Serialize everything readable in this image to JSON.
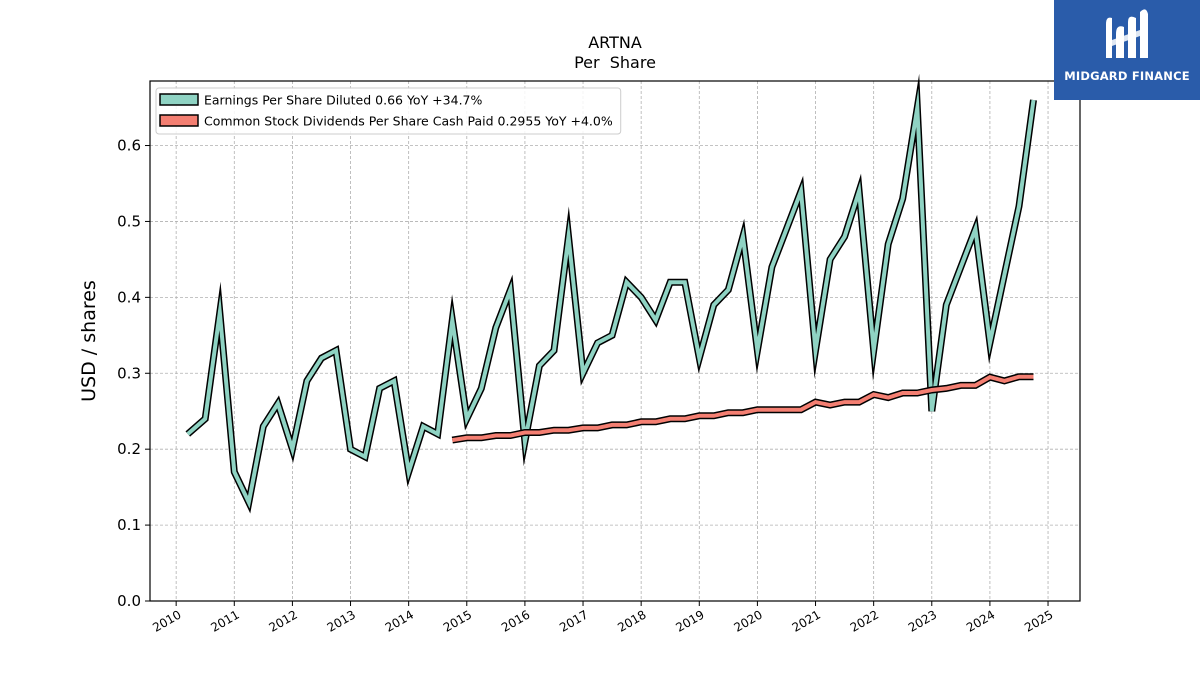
{
  "brand": {
    "name": "MIDGARD FINANCE",
    "icon": "mf-logo-icon",
    "color": "#2a5caa"
  },
  "chart_data": {
    "type": "line",
    "title": "ARTNA",
    "subtitle": "Per  Share",
    "ylabel": "USD / shares",
    "xlabel": "",
    "ylim": [
      0,
      0.685
    ],
    "xlim": [
      2009.55,
      2025.55
    ],
    "yticks": [
      0.0,
      0.1,
      0.2,
      0.3,
      0.4,
      0.5,
      0.6
    ],
    "ytick_labels": [
      "0.0",
      "0.1",
      "0.2",
      "0.3",
      "0.4",
      "0.5",
      "0.6"
    ],
    "xticks": [
      2010,
      2011,
      2012,
      2013,
      2014,
      2015,
      2016,
      2017,
      2018,
      2019,
      2020,
      2021,
      2022,
      2023,
      2024,
      2025
    ],
    "xtick_labels": [
      "2010",
      "2011",
      "2012",
      "2013",
      "2014",
      "2015",
      "2016",
      "2017",
      "2018",
      "2019",
      "2020",
      "2021",
      "2022",
      "2023",
      "2024",
      "2025"
    ],
    "grid": true,
    "legend_position": "top-left",
    "series": [
      {
        "name": "Earnings Per Share Diluted  0.66 YoY +34.7%",
        "color": "#8fd3c3",
        "x": [
          2010.2,
          2010.5,
          2010.75,
          2011.0,
          2011.25,
          2011.5,
          2011.75,
          2012.0,
          2012.25,
          2012.5,
          2012.75,
          2013.0,
          2013.25,
          2013.5,
          2013.75,
          2014.0,
          2014.25,
          2014.5,
          2014.75,
          2015.0,
          2015.25,
          2015.5,
          2015.75,
          2016.0,
          2016.25,
          2016.5,
          2016.75,
          2017.0,
          2017.25,
          2017.5,
          2017.75,
          2018.0,
          2018.25,
          2018.5,
          2018.75,
          2019.0,
          2019.25,
          2019.5,
          2019.75,
          2020.0,
          2020.25,
          2020.5,
          2020.75,
          2021.0,
          2021.25,
          2021.5,
          2021.75,
          2022.0,
          2022.25,
          2022.5,
          2022.75,
          2023.0,
          2023.25,
          2023.5,
          2023.75,
          2024.0,
          2024.25,
          2024.5,
          2024.75
        ],
        "y": [
          0.22,
          0.24,
          0.38,
          0.17,
          0.13,
          0.23,
          0.26,
          0.2,
          0.29,
          0.32,
          0.33,
          0.2,
          0.19,
          0.28,
          0.29,
          0.17,
          0.23,
          0.22,
          0.37,
          0.24,
          0.28,
          0.36,
          0.41,
          0.21,
          0.31,
          0.33,
          0.48,
          0.3,
          0.34,
          0.35,
          0.42,
          0.4,
          0.37,
          0.42,
          0.42,
          0.32,
          0.39,
          0.41,
          0.48,
          0.33,
          0.44,
          0.49,
          0.54,
          0.33,
          0.45,
          0.48,
          0.54,
          0.33,
          0.47,
          0.53,
          0.65,
          0.25,
          0.39,
          0.44,
          0.49,
          0.34,
          0.43,
          0.52,
          0.66
        ]
      },
      {
        "name": "Common Stock Dividends Per Share Cash Paid  0.2955 YoY +4.0%",
        "color": "#f47f72",
        "x": [
          2014.75,
          2015.0,
          2015.25,
          2015.5,
          2015.75,
          2016.0,
          2016.25,
          2016.5,
          2016.75,
          2017.0,
          2017.25,
          2017.5,
          2017.75,
          2018.0,
          2018.25,
          2018.5,
          2018.75,
          2019.0,
          2019.25,
          2019.5,
          2019.75,
          2020.0,
          2020.25,
          2020.5,
          2020.75,
          2021.0,
          2021.25,
          2021.5,
          2021.75,
          2022.0,
          2022.25,
          2022.5,
          2022.75,
          2023.0,
          2023.25,
          2023.5,
          2023.75,
          2024.0,
          2024.25,
          2024.5,
          2024.75
        ],
        "y": [
          0.212,
          0.215,
          0.215,
          0.218,
          0.218,
          0.222,
          0.222,
          0.225,
          0.225,
          0.228,
          0.228,
          0.232,
          0.232,
          0.236,
          0.236,
          0.24,
          0.24,
          0.244,
          0.244,
          0.248,
          0.248,
          0.252,
          0.252,
          0.252,
          0.252,
          0.262,
          0.258,
          0.262,
          0.262,
          0.272,
          0.268,
          0.274,
          0.274,
          0.278,
          0.28,
          0.284,
          0.284,
          0.295,
          0.29,
          0.2955,
          0.2955
        ]
      }
    ]
  }
}
